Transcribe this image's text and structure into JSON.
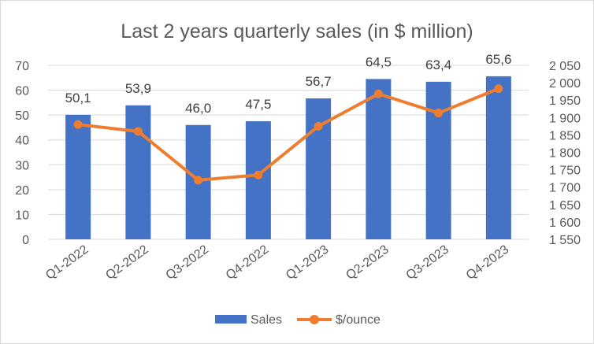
{
  "chart_data": {
    "type": "bar",
    "title": "Last 2 years quarterly sales (in $ million)",
    "categories": [
      "Q1-2022",
      "Q2-2022",
      "Q3-2022",
      "Q4-2022",
      "Q1-2023",
      "Q2-2023",
      "Q3-2023",
      "Q4-2023"
    ],
    "series": [
      {
        "name": "Sales",
        "type": "bar",
        "axis": "left",
        "color": "#4472C4",
        "values": [
          50.1,
          53.9,
          46.0,
          47.5,
          56.7,
          64.5,
          63.4,
          65.6
        ],
        "data_labels": [
          "50,1",
          "53,9",
          "46,0",
          "47,5",
          "56,7",
          "64,5",
          "63,4",
          "65,6"
        ]
      },
      {
        "name": "$/ounce",
        "type": "line",
        "axis": "right",
        "color": "#ED7D31",
        "values": [
          1880,
          1860,
          1720,
          1735,
          1875,
          1968,
          1913,
          1983
        ]
      }
    ],
    "y_left": {
      "min": 0,
      "max": 70,
      "step": 10,
      "tick_labels": [
        "0",
        "10",
        "20",
        "30",
        "40",
        "50",
        "60",
        "70"
      ]
    },
    "y_right": {
      "min": 1550,
      "max": 2050,
      "step": 50,
      "tick_labels": [
        "1 550",
        "1 600",
        "1 650",
        "1 700",
        "1 750",
        "1 800",
        "1 850",
        "1 900",
        "1 950",
        "2 000",
        "2 050"
      ]
    },
    "grid": true,
    "legend": "bottom"
  }
}
